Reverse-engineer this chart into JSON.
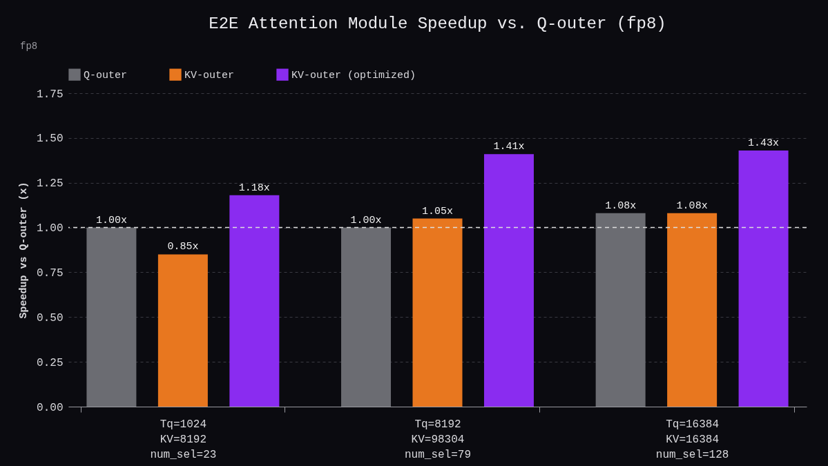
{
  "chart_data": {
    "type": "bar",
    "title": "E2E Attention Module Speedup vs. Q-outer (fp8)",
    "ylabel": "Speedup vs Q-outer (x)",
    "annotations": [
      "fp8"
    ],
    "categories": [
      "Tq=1024\nKV=8192\nnum_sel=23",
      "Tq=8192\nKV=98304\nnum_sel=79",
      "Tq=16384\nKV=16384\nnum_sel=128"
    ],
    "series": [
      {
        "name": "Q-outer",
        "color": "#6b6c72",
        "values": [
          1.0,
          1.0,
          1.08
        ],
        "value_labels": [
          "1.00x",
          "1.00x",
          "1.08x"
        ]
      },
      {
        "name": "KV-outer",
        "color": "#e8771f",
        "values": [
          0.85,
          1.05,
          1.08
        ],
        "value_labels": [
          "0.85x",
          "1.05x",
          "1.08x"
        ]
      },
      {
        "name": "KV-outer (optimized)",
        "color": "#8a2cf0",
        "values": [
          1.18,
          1.41,
          1.43
        ],
        "value_labels": [
          "1.18x",
          "1.41x",
          "1.43x"
        ]
      }
    ],
    "ylim": [
      0,
      1.75
    ],
    "yticks": [
      {
        "value": 0,
        "label": "0.00"
      },
      {
        "value": 0.25,
        "label": "0.25"
      },
      {
        "value": 0.5,
        "label": "0.50"
      },
      {
        "value": 0.75,
        "label": "0.75"
      },
      {
        "value": 1,
        "label": "1.00"
      },
      {
        "value": 1.25,
        "label": "1.25"
      },
      {
        "value": 1.5,
        "label": "1.50"
      },
      {
        "value": 1.75,
        "label": "1.75"
      }
    ],
    "grid": "y",
    "legend": "top",
    "ref_lines": [
      {
        "axis": "y",
        "value": 1.0,
        "label": null,
        "color": "#dddddd",
        "line_style": "dashed"
      }
    ]
  }
}
